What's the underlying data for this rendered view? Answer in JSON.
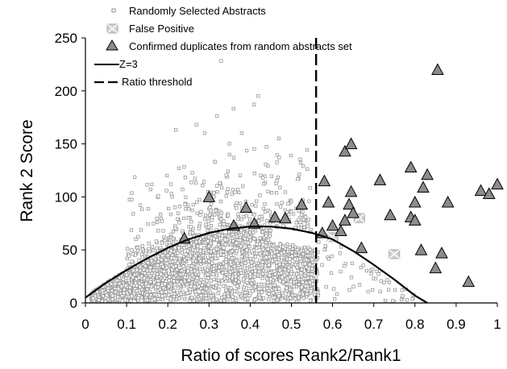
{
  "chart_data": {
    "type": "scatter",
    "xlabel": "Ratio of scores Rank2/Rank1",
    "ylabel": "Rank 2 Score",
    "xlim": [
      0,
      1
    ],
    "ylim": [
      0,
      250
    ],
    "x_ticks": [
      "0",
      "0.1",
      "0.2",
      "0.3",
      "0.4",
      "0.5",
      "0.6",
      "0.7",
      "0.8",
      "0.9",
      "1"
    ],
    "y_ticks": [
      "0",
      "50",
      "100",
      "150",
      "200",
      "250"
    ],
    "grid": false,
    "legend_position": "top-left",
    "legend": {
      "random": "Randomly Selected Abstracts",
      "false_positive": "False Positive",
      "duplicates": "Confirmed duplicates from random abstracts set",
      "z3": "Z=3",
      "ratio": "Ratio threshold"
    },
    "ratio_threshold": 0.56,
    "z3_curve": {
      "x": [
        0,
        0.05,
        0.1,
        0.15,
        0.2,
        0.25,
        0.3,
        0.35,
        0.4,
        0.45,
        0.5,
        0.55,
        0.6,
        0.65,
        0.7,
        0.75,
        0.8,
        0.83
      ],
      "y": [
        5,
        19,
        31,
        42,
        52,
        60,
        66,
        70,
        72,
        72,
        70,
        66,
        60,
        49,
        36,
        22,
        7,
        0
      ]
    },
    "false_positives": [
      {
        "x": 0.665,
        "y": 80
      },
      {
        "x": 0.6,
        "y": 62
      },
      {
        "x": 0.75,
        "y": 46
      }
    ],
    "duplicates": [
      {
        "x": 0.24,
        "y": 61
      },
      {
        "x": 0.3,
        "y": 100
      },
      {
        "x": 0.36,
        "y": 73
      },
      {
        "x": 0.39,
        "y": 90
      },
      {
        "x": 0.41,
        "y": 75
      },
      {
        "x": 0.46,
        "y": 81
      },
      {
        "x": 0.485,
        "y": 80
      },
      {
        "x": 0.525,
        "y": 93
      },
      {
        "x": 0.575,
        "y": 66
      },
      {
        "x": 0.58,
        "y": 115
      },
      {
        "x": 0.59,
        "y": 95
      },
      {
        "x": 0.6,
        "y": 73
      },
      {
        "x": 0.62,
        "y": 68
      },
      {
        "x": 0.63,
        "y": 78
      },
      {
        "x": 0.63,
        "y": 143
      },
      {
        "x": 0.64,
        "y": 93
      },
      {
        "x": 0.645,
        "y": 105
      },
      {
        "x": 0.645,
        "y": 150
      },
      {
        "x": 0.65,
        "y": 85
      },
      {
        "x": 0.67,
        "y": 52
      },
      {
        "x": 0.715,
        "y": 116
      },
      {
        "x": 0.74,
        "y": 83
      },
      {
        "x": 0.79,
        "y": 128
      },
      {
        "x": 0.79,
        "y": 81
      },
      {
        "x": 0.8,
        "y": 95
      },
      {
        "x": 0.8,
        "y": 78
      },
      {
        "x": 0.815,
        "y": 50
      },
      {
        "x": 0.82,
        "y": 109
      },
      {
        "x": 0.83,
        "y": 121
      },
      {
        "x": 0.85,
        "y": 33
      },
      {
        "x": 0.855,
        "y": 220
      },
      {
        "x": 0.865,
        "y": 47
      },
      {
        "x": 0.88,
        "y": 95
      },
      {
        "x": 0.93,
        "y": 20
      },
      {
        "x": 0.96,
        "y": 106
      },
      {
        "x": 0.98,
        "y": 103
      },
      {
        "x": 1.0,
        "y": 112
      }
    ],
    "random_outliers": [
      {
        "x": 0.33,
        "y": 228
      },
      {
        "x": 0.36,
        "y": 183
      },
      {
        "x": 0.42,
        "y": 195
      },
      {
        "x": 0.41,
        "y": 187
      },
      {
        "x": 0.32,
        "y": 176
      },
      {
        "x": 0.29,
        "y": 160
      },
      {
        "x": 0.22,
        "y": 163
      },
      {
        "x": 0.27,
        "y": 168
      },
      {
        "x": 0.38,
        "y": 160
      },
      {
        "x": 0.44,
        "y": 147
      },
      {
        "x": 0.47,
        "y": 155
      },
      {
        "x": 0.35,
        "y": 150
      }
    ],
    "random_bulk_description": "dense cloud of several thousand points concentrated below the Z=3 curve for x between 0.02 and 0.55, thinning above the curve up to about 150"
  }
}
